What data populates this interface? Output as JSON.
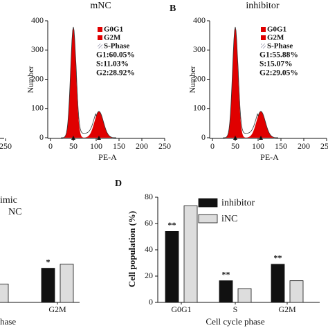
{
  "chart_data": [
    {
      "type": "axis-fragment",
      "xticks": [
        250
      ]
    },
    {
      "type": "flow-histogram",
      "title": "mNC",
      "xlabel": "PE-A",
      "ylabel": "Number",
      "xlim": [
        0,
        250
      ],
      "xticks": [
        0,
        50,
        100,
        150,
        200,
        250
      ],
      "ylim": [
        0,
        400
      ],
      "yticks": [
        0,
        100,
        200,
        300,
        400
      ],
      "legend": [
        {
          "name": "G0G1",
          "color": "#e00000"
        },
        {
          "name": "G2M",
          "color": "#e00000"
        },
        {
          "name": "S-Phase",
          "color": "hatch"
        }
      ],
      "stats": [
        "G1:60.05%",
        "S:11.03%",
        "G2:28.92%"
      ]
    },
    {
      "type": "flow-histogram",
      "panel": "B",
      "title": "inhibitor",
      "xlabel": "PE-A",
      "ylabel": "Number",
      "xlim": [
        0,
        250
      ],
      "xticks": [
        0,
        50,
        100,
        150,
        200,
        250
      ],
      "ylim": [
        0,
        400
      ],
      "yticks": [
        0,
        100,
        200,
        300,
        400
      ],
      "legend": [
        {
          "name": "G0G1",
          "color": "#e00000"
        },
        {
          "name": "G2M",
          "color": "#e00000"
        },
        {
          "name": "S-Phase",
          "color": "hatch"
        }
      ],
      "stats": [
        "G1:55.88%",
        "S:15.07%",
        "G2:29.05%"
      ]
    },
    {
      "type": "bar",
      "xlabel": "hase",
      "ylim": [
        0,
        80
      ],
      "categories": [
        null,
        "G2M"
      ],
      "series": [
        {
          "name": "imic",
          "color": "#111111",
          "values": [
            null,
            26
          ],
          "significance": [
            null,
            "*"
          ]
        },
        {
          "name": "NC",
          "color": "#dddddd",
          "values": [
            14,
            29
          ]
        }
      ]
    },
    {
      "type": "bar",
      "panel": "D",
      "xlabel": "Cell cycle phase",
      "ylabel": "Cell population (%)",
      "ylim": [
        0,
        80
      ],
      "yticks": [
        0,
        20,
        40,
        60,
        80
      ],
      "categories": [
        "G0G1",
        "S",
        "G2M"
      ],
      "series": [
        {
          "name": "inhibitor",
          "color": "#111111",
          "values": [
            54,
            16.5,
            29
          ],
          "significance": [
            "**",
            "**",
            "**"
          ]
        },
        {
          "name": "iNC",
          "color": "#dddddd",
          "values": [
            73.5,
            10.5,
            16.5
          ]
        }
      ]
    }
  ]
}
